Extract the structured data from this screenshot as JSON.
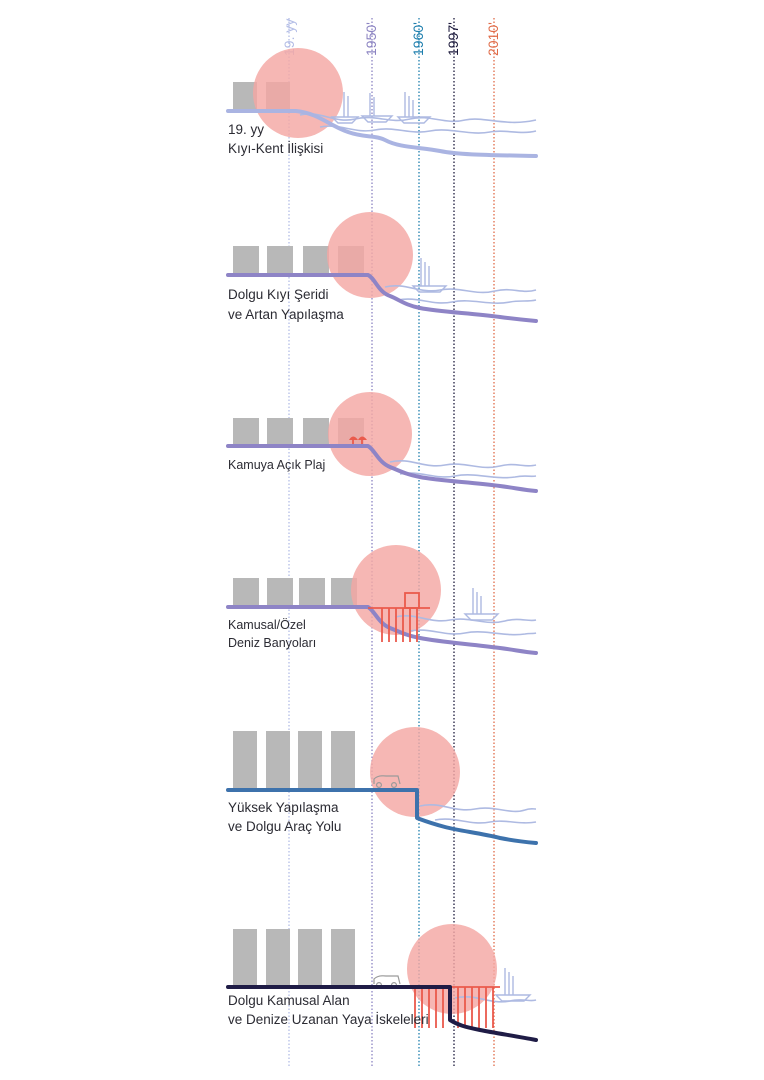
{
  "eras": [
    {
      "label": "19. yy",
      "color": "#b3bde6"
    },
    {
      "label": "1950'",
      "color": "#8c84c2"
    },
    {
      "label": "1960'",
      "color": "#1f7fae"
    },
    {
      "label": "1997'",
      "color": "#1c1a3c"
    },
    {
      "label": "2010'",
      "color": "#e06b48"
    }
  ],
  "colors": {
    "building": "#b8b8b8",
    "highlight": "#f4a7a3",
    "water": "#aebae2",
    "intervention": "#ea5a4c",
    "boat": "#aebae2"
  },
  "panels": [
    {
      "lines": [
        "19. yy",
        "Kıyı-Kent İlişkisi"
      ],
      "stroke": "#aab4e2"
    },
    {
      "lines": [
        "Dolgu Kıyı Şeridi",
        "ve Artan Yapılaşma"
      ],
      "stroke": "#8e84c6"
    },
    {
      "lines": [
        "Kamuya Açık Plaj"
      ],
      "stroke": "#8e84c6"
    },
    {
      "lines": [
        "Kamusal/Özel",
        "Deniz Banyoları"
      ],
      "stroke": "#8e84c6"
    },
    {
      "lines": [
        "Yüksek Yapılaşma",
        "ve Dolgu Araç Yolu"
      ],
      "stroke": "#3d72ac"
    },
    {
      "lines": [
        "Dolgu Kamusal Alan",
        "ve Denize Uzanan Yaya İskeleleri"
      ],
      "stroke": "#1f1c46"
    }
  ]
}
